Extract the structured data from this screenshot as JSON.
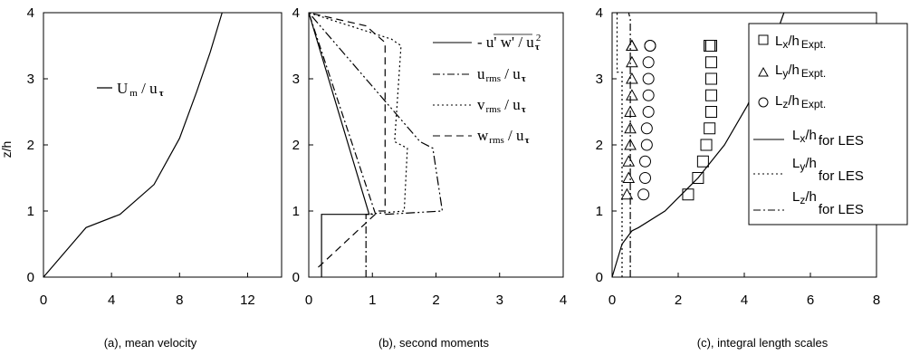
{
  "chart_data": [
    {
      "type": "line",
      "caption": "(a), mean velocity",
      "ylabel": "z/h",
      "xlim": [
        0,
        14
      ],
      "ylim": [
        0,
        4
      ],
      "xticks": [
        0,
        4,
        8,
        12
      ],
      "yticks": [
        0,
        1,
        2,
        3,
        4
      ],
      "series": [
        {
          "name": "U_m / u_τ",
          "legend_main": "U",
          "legend_sub": "m",
          "legend_rest": " / u",
          "legend_tau": "τ",
          "style": "solid",
          "x": [
            0,
            2.5,
            4.5,
            6.5,
            8.0,
            9.0,
            9.8,
            10.5
          ],
          "y": [
            0,
            0.75,
            0.95,
            1.4,
            2.1,
            2.8,
            3.4,
            4.0
          ]
        }
      ]
    },
    {
      "type": "line",
      "caption": "(b), second moments",
      "xlim": [
        0,
        4
      ],
      "ylim": [
        0,
        4
      ],
      "xticks": [
        0,
        1,
        2,
        3,
        4
      ],
      "yticks": [
        0,
        1,
        2,
        3,
        4
      ],
      "series": [
        {
          "name": "-u'w'/u_τ^2",
          "legend_main": "- u' w' / u",
          "legend_tau": "τ",
          "legend_sup": "2",
          "style": "solid",
          "x": [
            0.2,
            0.2,
            0.95,
            0.0
          ],
          "y": [
            0.0,
            0.95,
            0.95,
            4.0
          ]
        },
        {
          "name": "u_rms / u_τ",
          "legend_main": "u",
          "legend_sub": "rms",
          "legend_rest": " / u",
          "legend_tau": "τ",
          "style": "dashdot",
          "x": [
            0.9,
            0.9,
            1.05,
            0.0
          ],
          "y": [
            0.0,
            0.95,
            0.95,
            4.0
          ]
        },
        {
          "name": "v_rms / u_τ",
          "legend_main": "v",
          "legend_sub": "rms",
          "legend_rest": " / u",
          "legend_tau": "τ",
          "style": "dotted",
          "x": [
            0.9,
            1.5,
            1.55,
            1.35,
            1.45,
            1.3,
            0.0
          ],
          "y": [
            0.95,
            1.0,
            1.95,
            2.05,
            3.5,
            3.6,
            4.0
          ]
        },
        {
          "name": "w_rms / u_τ",
          "legend_main": "w",
          "legend_sub": "rms",
          "legend_rest": " / u",
          "legend_tau": "τ",
          "style": "dashed",
          "x": [
            0.15,
            1.1,
            1.2,
            1.2,
            0.9,
            0.0
          ],
          "y": [
            0.15,
            1.0,
            1.0,
            3.55,
            3.8,
            4.0
          ]
        },
        {
          "name": "w_rms / u_τ (outer)",
          "legend": false,
          "style": "dashdotdot",
          "x": [
            1.2,
            2.1,
            1.95,
            1.75,
            0.0
          ],
          "y": [
            0.95,
            1.0,
            1.95,
            2.05,
            4.0
          ]
        }
      ]
    },
    {
      "type": "scatter",
      "caption": "(c), integral length scales",
      "xlim": [
        0,
        8
      ],
      "ylim": [
        0,
        4
      ],
      "xticks": [
        0,
        2,
        4,
        6,
        8
      ],
      "yticks": [
        0,
        1,
        2,
        3,
        4
      ],
      "series": [
        {
          "name": "L_x/h Expt.",
          "legend_main": "L",
          "legend_sub1": "x",
          "legend_mid": "/h",
          "legend_sub2": "Expt.",
          "marker": "square",
          "x": [
            2.3,
            2.6,
            2.75,
            2.85,
            2.95,
            3.0,
            3.0,
            3.0,
            3.0,
            3.0,
            2.95,
            2.95
          ],
          "y": [
            1.25,
            1.5,
            1.75,
            2.0,
            2.25,
            2.5,
            2.75,
            3.0,
            3.25,
            3.5,
            3.5,
            3.5
          ]
        },
        {
          "name": "L_y/h Expt.",
          "legend_main": "L",
          "legend_sub1": "y",
          "legend_mid": "/h",
          "legend_sub2": "Expt.",
          "marker": "triangle",
          "x": [
            0.45,
            0.5,
            0.5,
            0.55,
            0.55,
            0.55,
            0.6,
            0.6,
            0.6,
            0.6,
            0.6
          ],
          "y": [
            1.25,
            1.5,
            1.75,
            2.0,
            2.25,
            2.5,
            2.75,
            3.0,
            3.25,
            3.5,
            3.5
          ]
        },
        {
          "name": "L_z/h Expt.",
          "legend_main": "L",
          "legend_sub1": "z",
          "legend_mid": "/h",
          "legend_sub2": "Expt.",
          "marker": "circle",
          "x": [
            0.95,
            1.0,
            1.0,
            1.05,
            1.05,
            1.1,
            1.1,
            1.1,
            1.1,
            1.15,
            1.15
          ],
          "y": [
            1.25,
            1.5,
            1.75,
            2.0,
            2.25,
            2.5,
            2.75,
            3.0,
            3.25,
            3.5,
            3.5
          ]
        },
        {
          "name": "L_x/h for LES",
          "legend_main": "L",
          "legend_sub1": "x",
          "legend_mid": "/h",
          "legend_sub2": "for LES",
          "style": "solid",
          "x": [
            0,
            0.3,
            0.6,
            0.8,
            1.6,
            2.6,
            3.4,
            4.1,
            4.7,
            5.2
          ],
          "y": [
            0,
            0.5,
            0.7,
            0.75,
            1.0,
            1.5,
            2.0,
            2.6,
            3.3,
            4.0
          ]
        },
        {
          "name": "L_y/h for LES",
          "legend_main": "L",
          "legend_sub1": "y",
          "legend_mid": "/h",
          "legend_sub2": "for LES",
          "style": "dotted",
          "x": [
            0.3,
            0.3,
            0.15,
            0.15
          ],
          "y": [
            0.0,
            3.1,
            3.1,
            4.0
          ]
        },
        {
          "name": "L_z/h for LES",
          "legend_main": "L",
          "legend_sub1": "z",
          "legend_mid": "/h",
          "legend_sub2": "for LES",
          "style": "dashdot",
          "x": [
            0.55,
            0.55,
            0.5
          ],
          "y": [
            0.0,
            3.9,
            4.0
          ]
        }
      ]
    }
  ]
}
